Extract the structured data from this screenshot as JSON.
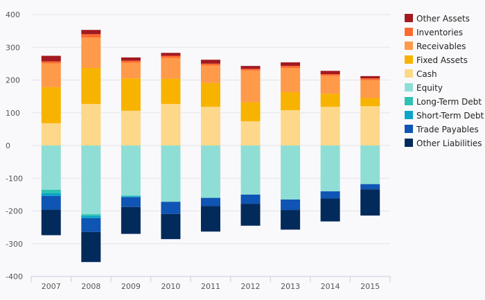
{
  "chart_data": {
    "type": "bar",
    "stacked": true,
    "categories": [
      "2007",
      "2008",
      "2009",
      "2010",
      "2011",
      "2012",
      "2013",
      "2014",
      "2015"
    ],
    "ylim": [
      -400,
      400
    ],
    "yticks": [
      400,
      300,
      200,
      100,
      0,
      -100,
      -200,
      -300,
      -400
    ],
    "grid": true,
    "legend_position": "right",
    "positive_series": [
      {
        "name": "Cash",
        "color": "#fdd88a",
        "values": [
          68,
          127,
          106,
          127,
          118,
          74,
          108,
          118,
          120
        ]
      },
      {
        "name": "Fixed Assets",
        "color": "#f8b300",
        "values": [
          110,
          110,
          99,
          77,
          73,
          58,
          55,
          40,
          25
        ]
      },
      {
        "name": "Receivables",
        "color": "#fe9a49",
        "values": [
          73,
          93,
          48,
          63,
          53,
          97,
          74,
          55,
          55
        ]
      },
      {
        "name": "Inventories",
        "color": "#ff6a30",
        "values": [
          6,
          10,
          6,
          7,
          6,
          5,
          6,
          5,
          5
        ]
      },
      {
        "name": "Other Assets",
        "color": "#a21a20",
        "values": [
          17,
          13,
          10,
          9,
          12,
          9,
          11,
          10,
          7
        ]
      }
    ],
    "negative_series": [
      {
        "name": "Equity",
        "color": "#8fded5",
        "values": [
          -135,
          -210,
          -153,
          -172,
          -160,
          -150,
          -165,
          -140,
          -118
        ]
      },
      {
        "name": "Long-Term Debt",
        "color": "#2fc2b3",
        "values": [
          -11,
          -5,
          -2,
          0,
          0,
          0,
          0,
          0,
          0
        ]
      },
      {
        "name": "Short-Term Debt",
        "color": "#0aa5c9",
        "values": [
          -8,
          -7,
          -3,
          0,
          0,
          0,
          0,
          0,
          0
        ]
      },
      {
        "name": "Trade Payables",
        "color": "#0e55b4",
        "values": [
          -42,
          -42,
          -30,
          -37,
          -25,
          -28,
          -32,
          -22,
          -16
        ]
      },
      {
        "name": "Other Liabilities",
        "color": "#022a5b",
        "values": [
          -78,
          -92,
          -82,
          -77,
          -78,
          -67,
          -60,
          -70,
          -80
        ]
      }
    ],
    "legend": [
      "Other Assets",
      "Inventories",
      "Receivables",
      "Fixed Assets",
      "Cash",
      "Equity",
      "Long-Term Debt",
      "Short-Term Debt",
      "Trade Payables",
      "Other Liabilities"
    ]
  }
}
